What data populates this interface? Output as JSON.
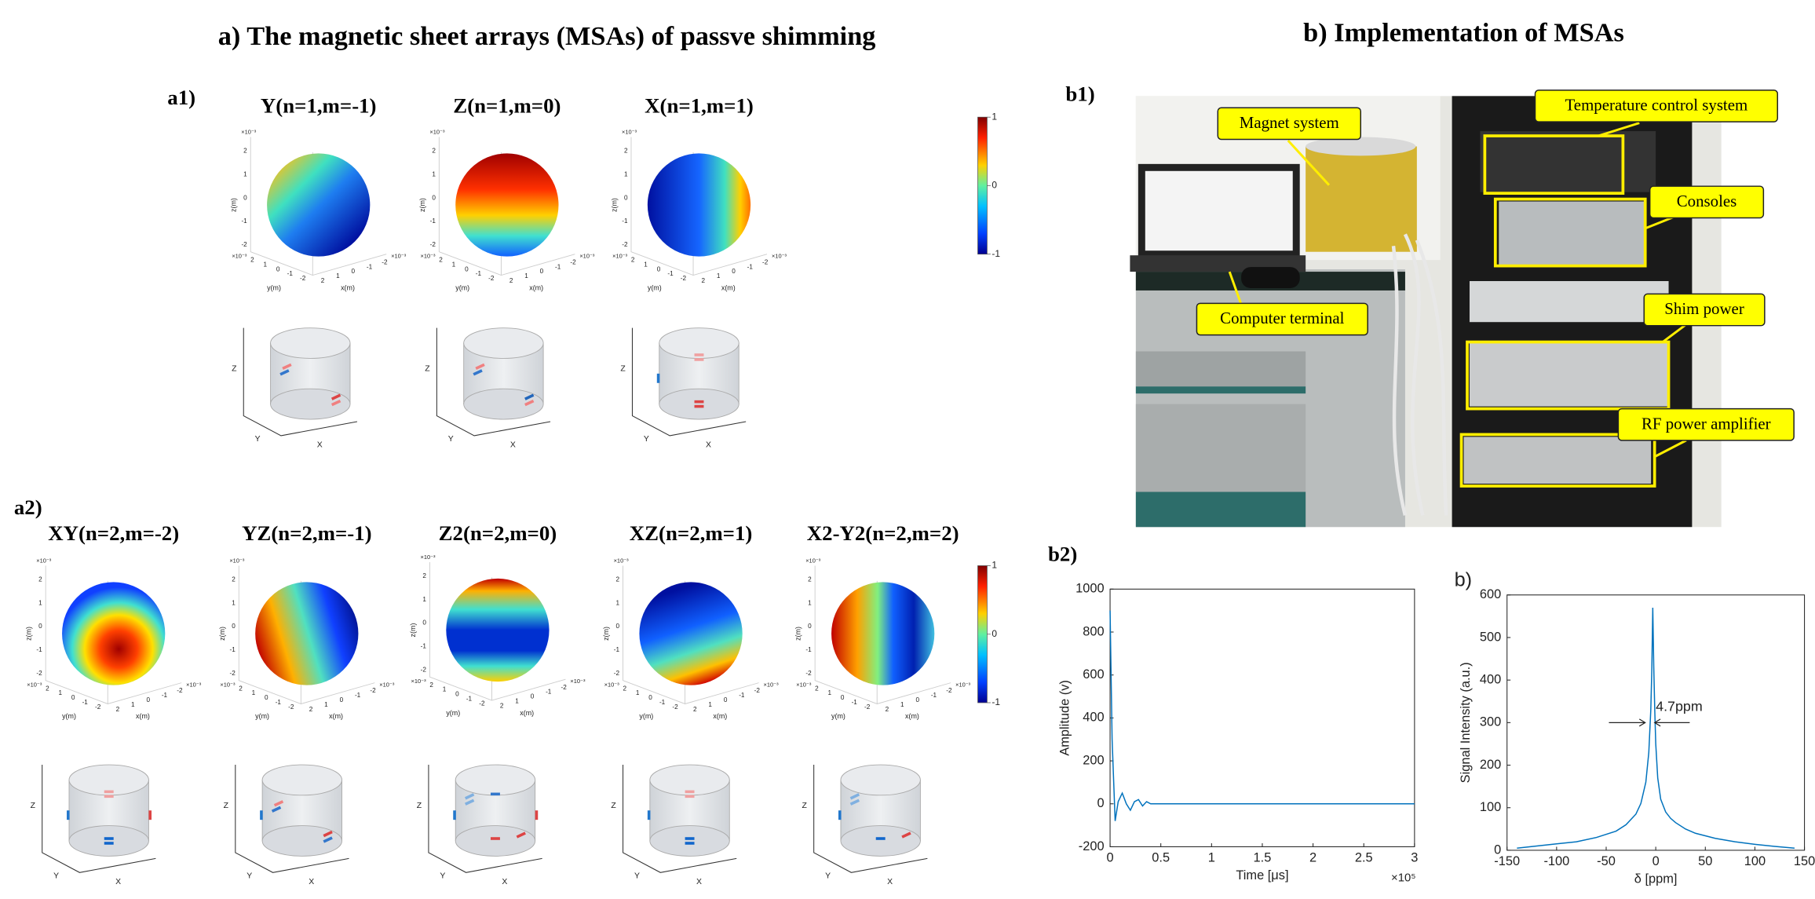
{
  "panel_a": {
    "title": "a) The magnetic sheet arrays (MSAs) of passve shimming",
    "a1": {
      "label": "a1)",
      "titles": [
        "Y(n=1,m=-1)",
        "Z(n=1,m=0)",
        "X(n=1,m=1)"
      ]
    },
    "a2": {
      "label": "a2)",
      "titles": [
        "XY(n=2,m=-2)",
        "YZ(n=2,m=-1)",
        "Z2(n=2,m=0)",
        "XZ(n=2,m=1)",
        "X2-Y2(n=2,m=2)"
      ]
    },
    "colorbar_ticks": [
      1,
      0,
      -1
    ],
    "sphere_axes": {
      "zlabel": "z(m)",
      "ylabel": "y(m)",
      "xlabel": "x(m)",
      "ticks": [
        2,
        1,
        0,
        -1,
        -2
      ],
      "exponent": "×10⁻³"
    },
    "cylinder_axes": {
      "z": "Z",
      "y": "Y",
      "x": "X"
    }
  },
  "panel_b": {
    "title": "b) Implementation of MSAs",
    "b1": {
      "label": "b1)",
      "callouts": [
        "Magnet system",
        "Temperature control system",
        "Consoles",
        "Computer terminal",
        "Shim power",
        "RF power amplifier"
      ]
    },
    "b2": {
      "label": "b2)"
    }
  },
  "chart_data": [
    {
      "type": "line",
      "xlabel": "Time [μs]",
      "ylabel": "Amplitude (v)",
      "x_exponent": "×10⁵",
      "x": [
        0,
        0.02,
        0.05,
        0.08,
        0.12,
        0.16,
        0.2,
        0.24,
        0.28,
        0.32,
        0.36,
        0.4,
        0.5,
        0.7,
        1,
        1.5,
        2,
        2.5,
        3
      ],
      "values": [
        900,
        300,
        -80,
        10,
        50,
        0,
        -30,
        10,
        20,
        -10,
        10,
        0,
        0,
        0,
        0,
        0,
        0,
        0,
        0
      ],
      "color": "#0072bd",
      "xlim": [
        0,
        3
      ],
      "xticks": [
        0,
        0.5,
        1,
        1.5,
        2,
        2.5,
        3
      ],
      "ylim": [
        -200,
        1000
      ],
      "yticks": [
        -200,
        0,
        200,
        400,
        600,
        800,
        1000
      ]
    },
    {
      "type": "line",
      "title": "b)",
      "xlabel": "δ [ppm]",
      "ylabel": "Signal Intensity (a.u.)",
      "annotation": "4.7ppm",
      "x": [
        -140,
        -120,
        -100,
        -80,
        -60,
        -40,
        -30,
        -20,
        -15,
        -10,
        -7,
        -5,
        -4,
        -3,
        -2,
        -1,
        0,
        2,
        5,
        10,
        15,
        20,
        30,
        40,
        60,
        80,
        100,
        120,
        140
      ],
      "values": [
        5,
        10,
        15,
        20,
        30,
        45,
        60,
        85,
        110,
        160,
        230,
        330,
        420,
        570,
        430,
        330,
        250,
        170,
        120,
        90,
        75,
        65,
        50,
        40,
        28,
        20,
        14,
        9,
        5
      ],
      "color": "#0072bd",
      "xlim": [
        -150,
        150
      ],
      "xticks": [
        -150,
        -100,
        -50,
        0,
        50,
        100,
        150
      ],
      "ylim": [
        0,
        600
      ],
      "yticks": [
        0,
        100,
        200,
        300,
        400,
        500,
        600
      ]
    }
  ]
}
